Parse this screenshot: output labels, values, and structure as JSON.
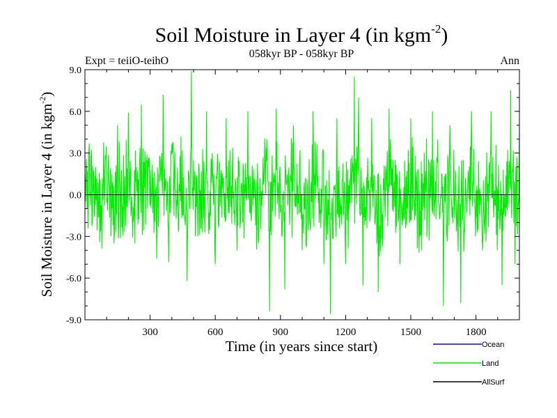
{
  "chart_data": {
    "type": "line",
    "title": "Soil Moisture in Layer 4 (in kgm",
    "title_sup": "-2",
    "title_close": ")",
    "subtitle": "058kyr BP - 058kyr BP",
    "left_label": "Expt = teiiO-teihO",
    "right_label": "Ann",
    "xlabel": "Time (in years since start)",
    "ylabel": "Soil Moisture in Layer 4 (in kgm",
    "ylabel_sup": "-2",
    "ylabel_close": ")",
    "xlim": [
      0,
      2000
    ],
    "ylim": [
      -9.0,
      9.0
    ],
    "x_ticks": [
      300,
      600,
      900,
      1200,
      1500,
      1800
    ],
    "x_tick_labels": [
      "300",
      "600",
      "900",
      "1200",
      "1500",
      "1800"
    ],
    "y_ticks": [
      -9,
      -6,
      -3,
      0,
      3,
      6,
      9
    ],
    "y_tick_labels": [
      "-9.0",
      "-6.0",
      "-3.0",
      "0.0",
      "3.0",
      "6.0",
      "9.0"
    ],
    "legend_position": "bottom-right",
    "series": [
      {
        "name": "Ocean",
        "color": "#0000ff",
        "values": []
      },
      {
        "name": "Land",
        "color": "#00ee00",
        "values": []
      },
      {
        "name": "AllSurf",
        "color": "#000000",
        "values": []
      }
    ],
    "land_keypoints": [
      [
        0,
        1.5
      ],
      [
        10,
        -1.0
      ],
      [
        25,
        7.0
      ],
      [
        50,
        2.0
      ],
      [
        75,
        -4.5
      ],
      [
        95,
        7.9
      ],
      [
        120,
        -3.0
      ],
      [
        150,
        5.0
      ],
      [
        175,
        -4.2
      ],
      [
        200,
        5.9
      ],
      [
        230,
        -3.5
      ],
      [
        260,
        6.5
      ],
      [
        285,
        -2.0
      ],
      [
        305,
        5.5
      ],
      [
        330,
        -4.6
      ],
      [
        360,
        7.2
      ],
      [
        385,
        -6.0
      ],
      [
        405,
        8.8
      ],
      [
        425,
        -4.0
      ],
      [
        445,
        7.8
      ],
      [
        470,
        -6.2
      ],
      [
        490,
        8.9
      ],
      [
        520,
        -3.0
      ],
      [
        560,
        6.0
      ],
      [
        600,
        -5.0
      ],
      [
        650,
        5.5
      ],
      [
        700,
        -4.0
      ],
      [
        750,
        6.0
      ],
      [
        800,
        -3.5
      ],
      [
        835,
        5.5
      ],
      [
        850,
        -8.4
      ],
      [
        880,
        6.2
      ],
      [
        920,
        -6.8
      ],
      [
        960,
        5.0
      ],
      [
        1000,
        -4.0
      ],
      [
        1050,
        6.0
      ],
      [
        1100,
        -5.0
      ],
      [
        1130,
        -8.6
      ],
      [
        1160,
        5.5
      ],
      [
        1200,
        -5.0
      ],
      [
        1240,
        8.5
      ],
      [
        1260,
        7.0
      ],
      [
        1280,
        -6.5
      ],
      [
        1320,
        5.5
      ],
      [
        1350,
        -7.0
      ],
      [
        1400,
        6.2
      ],
      [
        1450,
        -5.0
      ],
      [
        1500,
        5.5
      ],
      [
        1550,
        -4.0
      ],
      [
        1600,
        6.0
      ],
      [
        1650,
        -8.0
      ],
      [
        1680,
        5.0
      ],
      [
        1730,
        -7.8
      ],
      [
        1780,
        6.0
      ],
      [
        1830,
        -4.0
      ],
      [
        1870,
        6.0
      ],
      [
        1920,
        -6.5
      ],
      [
        1960,
        7.5
      ],
      [
        1980,
        -5.0
      ],
      [
        2000,
        4.5
      ]
    ]
  }
}
